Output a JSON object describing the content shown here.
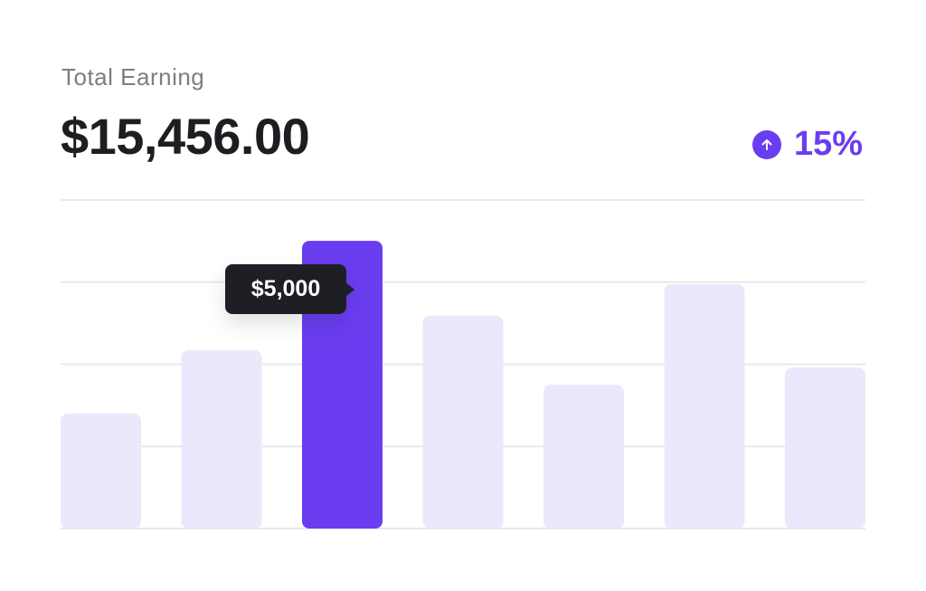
{
  "header": {
    "label": "Total Earning",
    "total": "$15,456.00",
    "change": "15%",
    "change_icon": "arrow-up-circle-icon"
  },
  "colors": {
    "accent": "#6a3df0",
    "bar": "#ece8fb",
    "grid": "#e8e8ee",
    "tooltip": "#1e1f25"
  },
  "chart_data": {
    "type": "bar",
    "categories": [
      "",
      "",
      "",
      "",
      "",
      "",
      ""
    ],
    "values": [
      2000,
      3100,
      5000,
      3700,
      2500,
      4250,
      2800
    ],
    "highlighted_index": 2,
    "tooltip": "$5,000",
    "ylim": [
      0,
      5710
    ],
    "grid": true,
    "title": "",
    "xlabel": "",
    "ylabel": ""
  }
}
